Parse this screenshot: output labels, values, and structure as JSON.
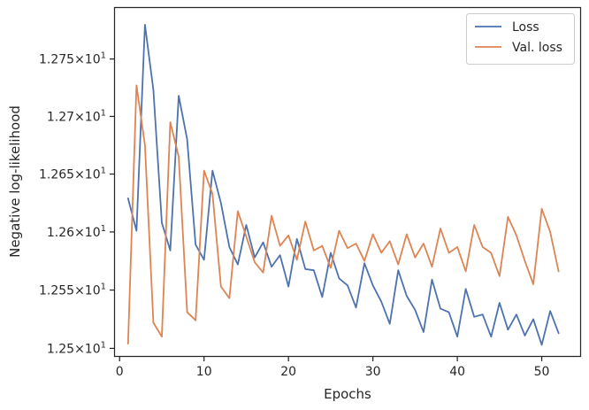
{
  "chart_data": {
    "type": "line",
    "title": "",
    "xlabel": "Epochs",
    "ylabel": "Negative log-likelihood",
    "xlim": [
      -0.55,
      54.55
    ],
    "ylim": [
      12.4935,
      12.7946
    ],
    "yscale": "log",
    "grid": false,
    "legend_position": "top-right",
    "xticks": [
      {
        "value": 0,
        "label": "0"
      },
      {
        "value": 10,
        "label": "10"
      },
      {
        "value": 20,
        "label": "20"
      },
      {
        "value": 30,
        "label": "30"
      },
      {
        "value": 40,
        "label": "40"
      },
      {
        "value": 50,
        "label": "50"
      }
    ],
    "yticks": [
      {
        "value": 12.5,
        "mantissa": "1.25",
        "base": "10",
        "exp": "1"
      },
      {
        "value": 12.55,
        "mantissa": "1.255",
        "base": "10",
        "exp": "1"
      },
      {
        "value": 12.6,
        "mantissa": "1.26",
        "base": "10",
        "exp": "1"
      },
      {
        "value": 12.65,
        "mantissa": "1.265",
        "base": "10",
        "exp": "1"
      },
      {
        "value": 12.7,
        "mantissa": "1.27",
        "base": "10",
        "exp": "1"
      },
      {
        "value": 12.75,
        "mantissa": "1.275",
        "base": "10",
        "exp": "1"
      }
    ],
    "x": [
      1,
      2,
      3,
      4,
      5,
      6,
      7,
      8,
      9,
      10,
      11,
      12,
      13,
      14,
      15,
      16,
      17,
      18,
      19,
      20,
      21,
      22,
      23,
      24,
      25,
      26,
      27,
      28,
      29,
      30,
      31,
      32,
      33,
      34,
      35,
      36,
      37,
      38,
      39,
      40,
      41,
      42,
      43,
      44,
      45,
      46,
      47,
      48,
      49,
      50,
      51,
      52
    ],
    "series": [
      {
        "name": "Loss",
        "color": "#4c72b0",
        "values": [
          12.629,
          12.601,
          12.78,
          12.723,
          12.608,
          12.584,
          12.718,
          12.68,
          12.589,
          12.576,
          12.653,
          12.625,
          12.587,
          12.572,
          12.606,
          12.578,
          12.591,
          12.57,
          12.58,
          12.553,
          12.594,
          12.568,
          12.567,
          12.544,
          12.582,
          12.56,
          12.554,
          12.535,
          12.573,
          12.554,
          12.54,
          12.521,
          12.567,
          12.545,
          12.533,
          12.514,
          12.559,
          12.534,
          12.531,
          12.51,
          12.551,
          12.527,
          12.529,
          12.51,
          12.539,
          12.516,
          12.529,
          12.511,
          12.525,
          12.503,
          12.532,
          12.513
        ]
      },
      {
        "name": "Val. loss",
        "color": "#dd8452",
        "values": [
          12.504,
          12.727,
          12.675,
          12.522,
          12.51,
          12.695,
          12.665,
          12.531,
          12.524,
          12.653,
          12.633,
          12.553,
          12.543,
          12.618,
          12.596,
          12.574,
          12.565,
          12.614,
          12.588,
          12.597,
          12.576,
          12.609,
          12.584,
          12.588,
          12.569,
          12.601,
          12.586,
          12.59,
          12.575,
          12.598,
          12.582,
          12.592,
          12.572,
          12.598,
          12.578,
          12.59,
          12.57,
          12.603,
          12.582,
          12.587,
          12.566,
          12.606,
          12.587,
          12.582,
          12.562,
          12.613,
          12.597,
          12.575,
          12.555,
          12.62,
          12.6,
          12.566
        ]
      }
    ]
  }
}
